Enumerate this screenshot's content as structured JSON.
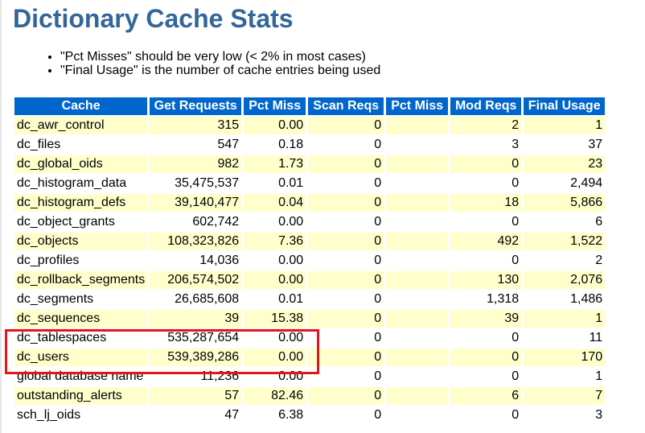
{
  "title": "Dictionary Cache Stats",
  "notes": [
    "\"Pct Misses\" should be very low (< 2% in most cases)",
    "\"Final Usage\" is the number of cache entries being used"
  ],
  "colors": {
    "header_bg": "#0066cc",
    "title": "#336699",
    "row_alt": "#ffffcc",
    "highlight": "#e8141b"
  },
  "table": {
    "headers": [
      "Cache",
      "Get Requests",
      "Pct Miss",
      "Scan Reqs",
      "Pct Miss",
      "Mod Reqs",
      "Final Usage"
    ],
    "rows": [
      [
        "dc_awr_control",
        "315",
        "0.00",
        "0",
        "",
        "2",
        "1"
      ],
      [
        "dc_files",
        "547",
        "0.18",
        "0",
        "",
        "3",
        "37"
      ],
      [
        "dc_global_oids",
        "982",
        "1.73",
        "0",
        "",
        "0",
        "23"
      ],
      [
        "dc_histogram_data",
        "35,475,537",
        "0.01",
        "0",
        "",
        "0",
        "2,494"
      ],
      [
        "dc_histogram_defs",
        "39,140,477",
        "0.04",
        "0",
        "",
        "18",
        "5,866"
      ],
      [
        "dc_object_grants",
        "602,742",
        "0.00",
        "0",
        "",
        "0",
        "6"
      ],
      [
        "dc_objects",
        "108,323,826",
        "7.36",
        "0",
        "",
        "492",
        "1,522"
      ],
      [
        "dc_profiles",
        "14,036",
        "0.00",
        "0",
        "",
        "0",
        "2"
      ],
      [
        "dc_rollback_segments",
        "206,574,502",
        "0.00",
        "0",
        "",
        "130",
        "2,076"
      ],
      [
        "dc_segments",
        "26,685,608",
        "0.01",
        "0",
        "",
        "1,318",
        "1,486"
      ],
      [
        "dc_sequences",
        "39",
        "15.38",
        "0",
        "",
        "39",
        "1"
      ],
      [
        "dc_tablespaces",
        "535,287,654",
        "0.00",
        "0",
        "",
        "0",
        "11"
      ],
      [
        "dc_users",
        "539,389,286",
        "0.00",
        "0",
        "",
        "0",
        "170"
      ],
      [
        "global database name",
        "11,236",
        "0.00",
        "0",
        "",
        "0",
        "1"
      ],
      [
        "outstanding_alerts",
        "57",
        "82.46",
        "0",
        "",
        "6",
        "7"
      ],
      [
        "sch_lj_oids",
        "47",
        "6.38",
        "0",
        "",
        "0",
        "3"
      ]
    ]
  },
  "highlighted_rows": [
    "dc_tablespaces",
    "dc_users"
  ]
}
